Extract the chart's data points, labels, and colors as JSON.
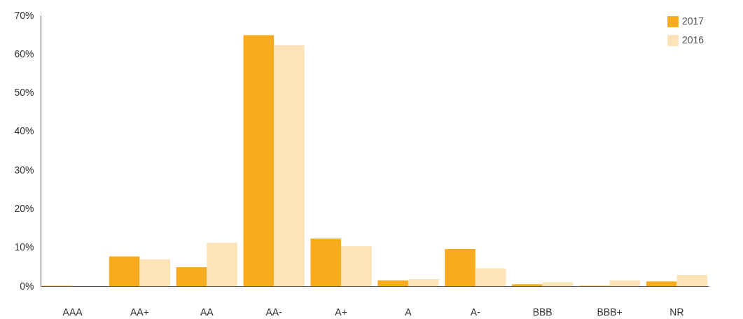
{
  "chart_data": {
    "type": "bar",
    "categories": [
      "AAA",
      "AA+",
      "AA",
      "AA-",
      "A+",
      "A",
      "A-",
      "BBB",
      "BBB+",
      "NR"
    ],
    "series": [
      {
        "name": "2017",
        "color": "#f9ab1f",
        "values": [
          0.1,
          7.7,
          4.9,
          64.9,
          12.3,
          1.5,
          9.6,
          0.5,
          0.1,
          1.2
        ]
      },
      {
        "name": "2016",
        "color": "#fde3b8",
        "values": [
          0,
          6.9,
          11.2,
          62.3,
          10.3,
          1.8,
          4.6,
          1.0,
          1.5,
          2.9
        ]
      }
    ],
    "ylim": [
      0,
      70
    ],
    "yticks": [
      {
        "value": 0,
        "label": "0%"
      },
      {
        "value": 10,
        "label": "10%"
      },
      {
        "value": 20,
        "label": "20%"
      },
      {
        "value": 30,
        "label": "30%"
      },
      {
        "value": 40,
        "label": "40%"
      },
      {
        "value": 50,
        "label": "50%"
      },
      {
        "value": 60,
        "label": "60%"
      },
      {
        "value": 70,
        "label": "70%"
      }
    ],
    "grid": false,
    "legend": "right"
  }
}
